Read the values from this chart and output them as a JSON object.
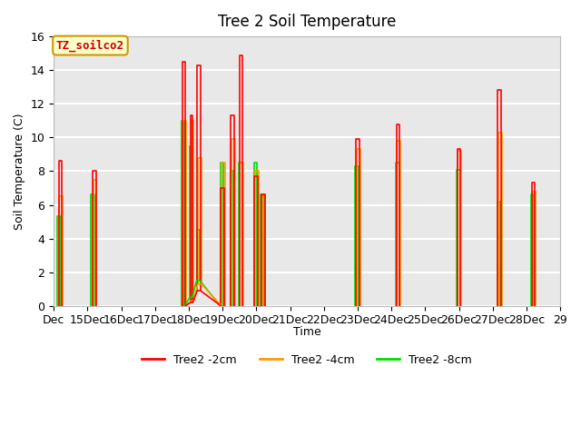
{
  "title": "Tree 2 Soil Temperature",
  "ylabel": "Soil Temperature (C)",
  "xlabel": "Time",
  "annotation": "TZ_soilco2",
  "annotation_color": "#cc0000",
  "annotation_bg": "#ffffcc",
  "annotation_border": "#cc9900",
  "bg_color": "#e8e8e8",
  "xtick_labels": [
    "Dec",
    "15Dec",
    "16Dec",
    "17Dec",
    "18Dec",
    "19Dec",
    "20Dec",
    "21Dec",
    "22Dec",
    "23Dec",
    "24Dec",
    "25Dec",
    "26Dec",
    "27Dec",
    "28Dec",
    "29"
  ],
  "xtick_positions": [
    0,
    1,
    2,
    3,
    4,
    5,
    6,
    7,
    8,
    9,
    10,
    11,
    12,
    13,
    14,
    15
  ],
  "series_order": [
    "Tree2_8cm",
    "Tree2_4cm",
    "Tree2_2cm"
  ],
  "series": {
    "Tree2_2cm": {
      "color": "#ff0000",
      "lw": 1.2,
      "x": [
        0.15,
        0.15,
        0.25,
        0.25,
        1.15,
        1.15,
        1.25,
        1.25,
        3.8,
        3.8,
        3.9,
        3.9,
        4.05,
        4.05,
        4.12,
        4.12,
        4.25,
        4.25,
        4.35,
        4.35,
        4.95,
        4.95,
        5.05,
        5.05,
        5.25,
        5.25,
        5.35,
        5.35,
        5.5,
        5.5,
        5.6,
        5.6,
        5.95,
        5.95,
        6.05,
        6.05,
        6.15,
        6.15,
        6.25,
        6.25,
        8.95,
        8.95,
        9.05,
        9.05,
        10.15,
        10.15,
        10.25,
        10.25,
        11.95,
        11.95,
        12.05,
        12.05,
        13.15,
        13.15,
        13.25,
        13.25,
        14.15,
        14.15,
        14.25,
        14.25
      ],
      "y": [
        0,
        8.6,
        8.6,
        0,
        0,
        8.0,
        8.0,
        0,
        0,
        14.5,
        14.5,
        0,
        0.2,
        11.3,
        11.3,
        0.2,
        0.9,
        14.3,
        14.3,
        0.9,
        0,
        7.0,
        7.0,
        0,
        0,
        11.3,
        11.3,
        0,
        0,
        14.9,
        14.9,
        0,
        0,
        7.7,
        7.7,
        0,
        0,
        6.6,
        6.6,
        0,
        0,
        9.9,
        9.9,
        0,
        0,
        10.8,
        10.8,
        0,
        0,
        9.3,
        9.3,
        0,
        0,
        12.8,
        12.8,
        0,
        0,
        7.3,
        7.3,
        0
      ]
    },
    "Tree2_4cm": {
      "color": "#ff9900",
      "lw": 1.2,
      "x": [
        0.17,
        0.17,
        0.27,
        0.27,
        1.17,
        1.17,
        1.27,
        1.27,
        3.82,
        3.82,
        3.92,
        3.92,
        4.07,
        4.07,
        4.14,
        4.14,
        4.27,
        4.27,
        4.37,
        4.37,
        4.97,
        4.97,
        5.07,
        5.07,
        5.27,
        5.27,
        5.37,
        5.37,
        5.52,
        5.52,
        5.62,
        5.62,
        5.97,
        5.97,
        6.07,
        6.07,
        6.17,
        6.17,
        6.27,
        6.27,
        8.97,
        8.97,
        9.07,
        9.07,
        10.17,
        10.17,
        10.27,
        10.27,
        11.97,
        11.97,
        12.07,
        12.07,
        13.17,
        13.17,
        13.27,
        13.27,
        14.17,
        14.17,
        14.27,
        14.27
      ],
      "y": [
        0,
        6.5,
        6.5,
        0,
        0,
        7.5,
        7.5,
        0,
        0,
        11.0,
        11.0,
        0,
        0.3,
        11.0,
        11.0,
        0.3,
        1.3,
        8.8,
        8.8,
        1.3,
        0,
        8.5,
        8.5,
        0,
        0,
        9.9,
        9.9,
        0,
        0,
        8.5,
        8.5,
        0,
        0,
        8.0,
        8.0,
        0,
        0,
        6.6,
        6.6,
        0,
        0,
        9.3,
        9.3,
        0,
        0,
        9.8,
        9.8,
        0,
        0,
        9.2,
        9.2,
        0,
        0,
        10.3,
        10.3,
        0,
        0,
        6.8,
        6.8,
        0
      ]
    },
    "Tree2_8cm": {
      "color": "#00dd00",
      "lw": 1.2,
      "x": [
        0.1,
        0.1,
        0.2,
        0.2,
        1.1,
        1.1,
        1.2,
        1.2,
        3.78,
        3.78,
        3.88,
        3.88,
        4.03,
        4.03,
        4.1,
        4.1,
        4.23,
        4.23,
        4.33,
        4.33,
        4.93,
        4.93,
        5.03,
        5.03,
        5.23,
        5.23,
        5.33,
        5.33,
        5.48,
        5.48,
        5.58,
        5.58,
        5.93,
        5.93,
        6.03,
        6.03,
        6.13,
        6.13,
        6.23,
        6.23,
        8.93,
        8.93,
        9.03,
        9.03,
        10.13,
        10.13,
        10.23,
        10.23,
        11.93,
        11.93,
        12.03,
        12.03,
        13.13,
        13.13,
        13.23,
        13.23,
        14.13,
        14.13,
        14.23,
        14.23
      ],
      "y": [
        0,
        5.3,
        5.3,
        0,
        0,
        6.6,
        6.6,
        0,
        0,
        11.0,
        11.0,
        0,
        0.5,
        9.5,
        9.5,
        0.5,
        1.5,
        4.5,
        4.5,
        1.5,
        0,
        8.5,
        8.5,
        0,
        0,
        8.0,
        8.0,
        0,
        0,
        8.5,
        8.5,
        0,
        0,
        8.5,
        8.5,
        0,
        0,
        6.6,
        6.6,
        0,
        0,
        8.3,
        8.3,
        0,
        0,
        8.5,
        8.5,
        0,
        0,
        8.1,
        8.1,
        0,
        0,
        6.2,
        6.2,
        0,
        0,
        6.6,
        6.6,
        0
      ]
    }
  },
  "connect_lines": {
    "Tree2_2cm": {
      "x": [
        3.9,
        4.05,
        4.12,
        4.25,
        4.35,
        4.95
      ],
      "y": [
        0,
        0.2,
        0.2,
        0.9,
        0.9,
        0
      ]
    },
    "Tree2_4cm": {
      "x": [
        3.92,
        4.07,
        4.14,
        4.27,
        4.37,
        4.97
      ],
      "y": [
        0,
        0.3,
        0.3,
        1.3,
        1.3,
        0
      ]
    },
    "Tree2_8cm": {
      "x": [
        3.88,
        4.03,
        4.1,
        4.23,
        4.33,
        4.93
      ],
      "y": [
        0,
        0.5,
        0.5,
        1.5,
        1.5,
        0
      ]
    }
  },
  "legend": [
    {
      "label": "Tree2 -2cm",
      "color": "#ff0000"
    },
    {
      "label": "Tree2 -4cm",
      "color": "#ff9900"
    },
    {
      "label": "Tree2 -8cm",
      "color": "#00dd00"
    }
  ]
}
